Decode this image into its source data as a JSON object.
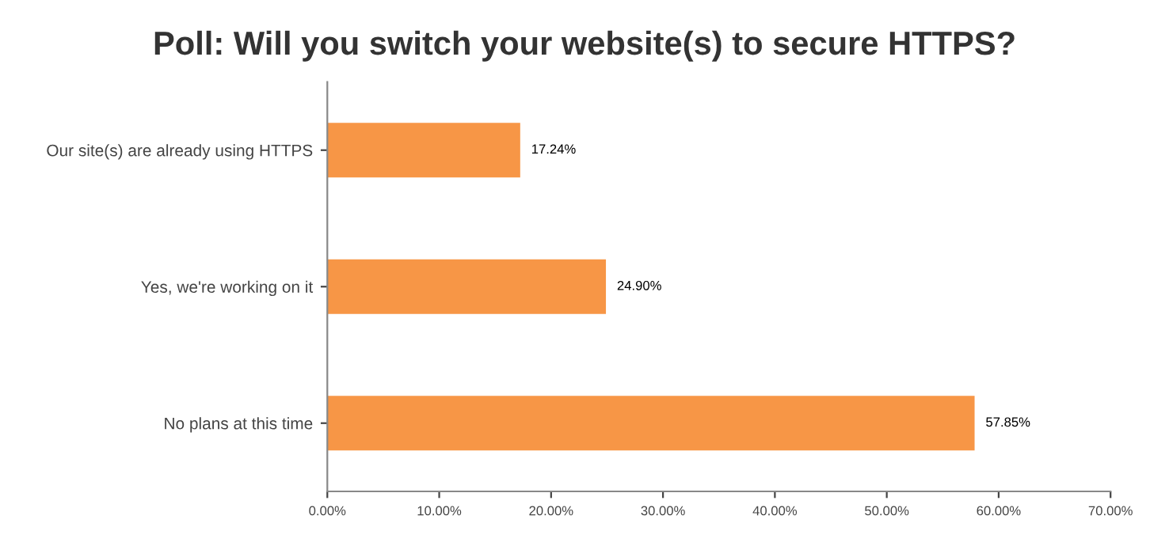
{
  "chart_data": {
    "type": "bar",
    "orientation": "horizontal",
    "title": "Poll: Will you switch your website(s) to secure HTTPS?",
    "categories": [
      "Our site(s) are already using HTTPS",
      "Yes, we're working on it",
      "No plans at this time"
    ],
    "values": [
      17.24,
      24.9,
      57.85
    ],
    "value_labels": [
      "17.24%",
      "24.90%",
      "57.85%"
    ],
    "color": "#f79646",
    "xlim": [
      0,
      70
    ],
    "xticks": [
      {
        "value": 0,
        "label": "0.00%"
      },
      {
        "value": 10,
        "label": "10.00%"
      },
      {
        "value": 20,
        "label": "20.00%"
      },
      {
        "value": 30,
        "label": "30.00%"
      },
      {
        "value": 40,
        "label": "40.00%"
      },
      {
        "value": 50,
        "label": "50.00%"
      },
      {
        "value": 60,
        "label": "60.00%"
      },
      {
        "value": 70,
        "label": "70.00%"
      }
    ],
    "grid": false,
    "legend": false
  }
}
